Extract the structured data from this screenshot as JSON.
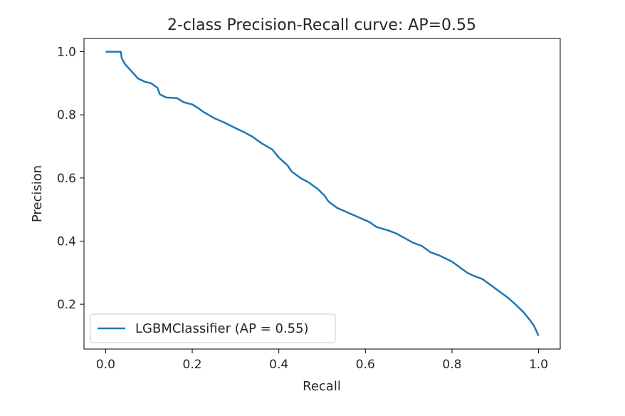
{
  "chart_data": {
    "type": "line",
    "title": "2-class Precision-Recall curve: AP=0.55",
    "xlabel": "Recall",
    "ylabel": "Precision",
    "xlim": [
      -0.05,
      1.05
    ],
    "ylim": [
      0.0581,
      1.0419
    ],
    "xticks": [
      "0.0",
      "0.2",
      "0.4",
      "0.6",
      "0.8",
      "1.0"
    ],
    "yticks": [
      "0.2",
      "0.4",
      "0.6",
      "0.8",
      "1.0"
    ],
    "grid": false,
    "legend": {
      "placement": "lower-left"
    },
    "series": [
      {
        "name": "LGBMClassifier (AP = 0.55)",
        "color": "#1f77b4",
        "points": [
          [
            0.0,
            1.0
          ],
          [
            0.035,
            1.0
          ],
          [
            0.037,
            0.98
          ],
          [
            0.045,
            0.96
          ],
          [
            0.055,
            0.945
          ],
          [
            0.065,
            0.93
          ],
          [
            0.075,
            0.915
          ],
          [
            0.09,
            0.905
          ],
          [
            0.105,
            0.9
          ],
          [
            0.12,
            0.885
          ],
          [
            0.125,
            0.865
          ],
          [
            0.14,
            0.855
          ],
          [
            0.165,
            0.853
          ],
          [
            0.18,
            0.84
          ],
          [
            0.2,
            0.833
          ],
          [
            0.215,
            0.82
          ],
          [
            0.225,
            0.81
          ],
          [
            0.25,
            0.79
          ],
          [
            0.275,
            0.775
          ],
          [
            0.3,
            0.758
          ],
          [
            0.32,
            0.745
          ],
          [
            0.34,
            0.73
          ],
          [
            0.36,
            0.71
          ],
          [
            0.385,
            0.69
          ],
          [
            0.4,
            0.665
          ],
          [
            0.42,
            0.64
          ],
          [
            0.43,
            0.62
          ],
          [
            0.45,
            0.6
          ],
          [
            0.47,
            0.585
          ],
          [
            0.49,
            0.565
          ],
          [
            0.505,
            0.545
          ],
          [
            0.515,
            0.525
          ],
          [
            0.535,
            0.505
          ],
          [
            0.56,
            0.49
          ],
          [
            0.585,
            0.475
          ],
          [
            0.61,
            0.46
          ],
          [
            0.625,
            0.445
          ],
          [
            0.65,
            0.435
          ],
          [
            0.67,
            0.425
          ],
          [
            0.69,
            0.41
          ],
          [
            0.71,
            0.395
          ],
          [
            0.73,
            0.385
          ],
          [
            0.75,
            0.365
          ],
          [
            0.77,
            0.355
          ],
          [
            0.8,
            0.335
          ],
          [
            0.82,
            0.315
          ],
          [
            0.835,
            0.3
          ],
          [
            0.85,
            0.29
          ],
          [
            0.87,
            0.28
          ],
          [
            0.89,
            0.26
          ],
          [
            0.91,
            0.24
          ],
          [
            0.93,
            0.22
          ],
          [
            0.95,
            0.195
          ],
          [
            0.965,
            0.175
          ],
          [
            0.98,
            0.15
          ],
          [
            0.99,
            0.13
          ],
          [
            1.0,
            0.1
          ]
        ]
      }
    ]
  }
}
